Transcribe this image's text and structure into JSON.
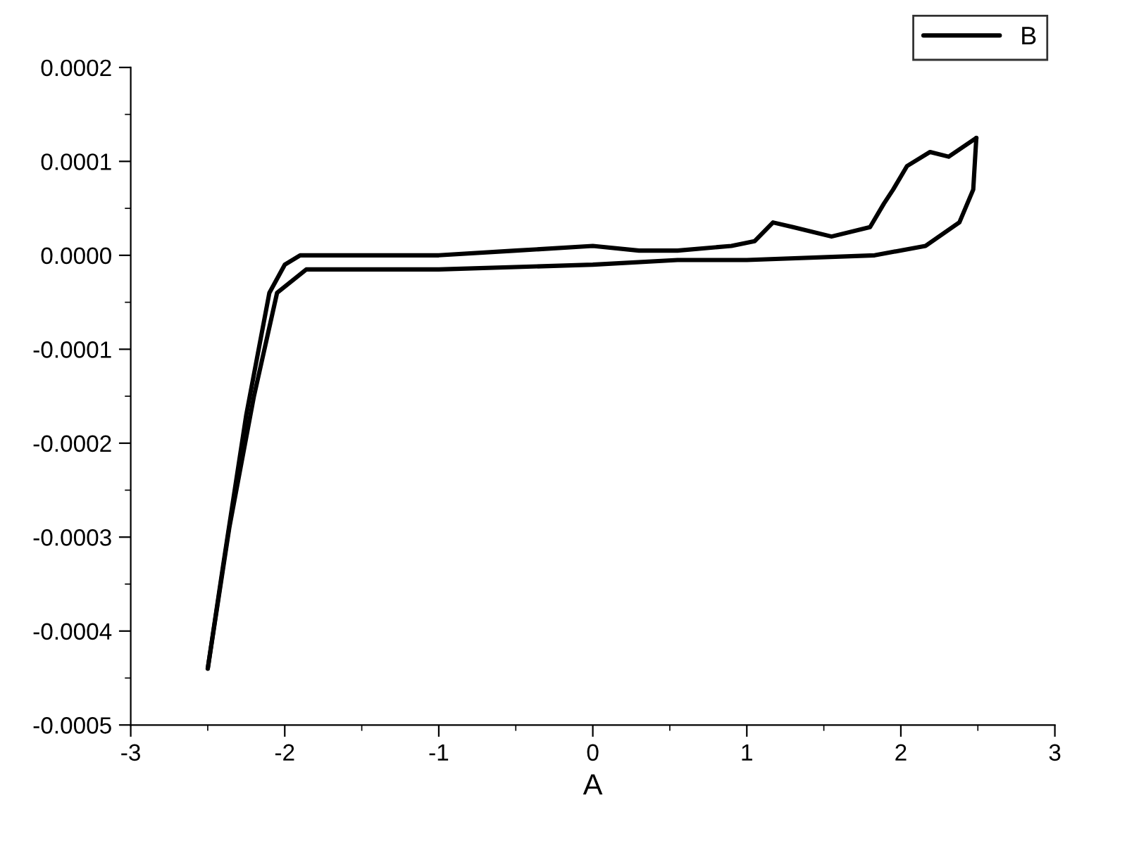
{
  "chart_data": {
    "type": "line",
    "xlabel": "A",
    "legend": "top right",
    "marker": "none",
    "line_style": "solid",
    "grid": false,
    "xlim": [
      -3,
      3
    ],
    "xticks": [
      -3,
      -2,
      -1,
      0,
      1,
      2,
      3
    ],
    "ylim": [
      -0.0005,
      0.0002
    ],
    "yticks": [
      {
        "value": -0.0005,
        "label": "-0.0005"
      },
      {
        "value": -0.0004,
        "label": "-0.0004"
      },
      {
        "value": -0.0003,
        "label": "-0.0003"
      },
      {
        "value": -0.0002,
        "label": "-0.0002"
      },
      {
        "value": -0.0001,
        "label": "-0.0001"
      },
      {
        "value": 0,
        "label": "0.0000"
      },
      {
        "value": 0.0001,
        "label": "0.0001"
      },
      {
        "value": 0.0002,
        "label": "0.0002"
      }
    ],
    "series": [
      {
        "name": "B",
        "color": "#000000",
        "x": [
          -2.5,
          -2.4,
          -2.25,
          -2.1,
          -2.0,
          -1.9,
          -1.5,
          -1.0,
          -0.5,
          0.0,
          0.3,
          0.55,
          0.9,
          1.05,
          1.17,
          1.3,
          1.55,
          1.8,
          1.89,
          1.95,
          2.04,
          2.19,
          2.31,
          2.49
        ],
        "values": [
          -0.00044,
          -0.00033,
          -0.00017,
          -4e-05,
          -1e-05,
          0.0,
          0.0,
          0.0,
          5e-06,
          1e-05,
          5e-06,
          5e-06,
          1e-05,
          1.5e-05,
          3.5e-05,
          3e-05,
          2e-05,
          3e-05,
          5.5e-05,
          7e-05,
          9.5e-05,
          0.00011,
          0.000105,
          0.000125
        ]
      },
      {
        "color": "#000000",
        "x": [
          2.49,
          2.47,
          2.38,
          2.16,
          1.83,
          1.0,
          0.55,
          0.0,
          -1.0,
          -1.7,
          -1.86,
          -2.05,
          -2.2,
          -2.36,
          -2.5
        ],
        "values": [
          0.000125,
          7e-05,
          3.5e-05,
          1e-05,
          0.0,
          -5e-06,
          -5e-06,
          -1e-05,
          -1.5e-05,
          -1.5e-05,
          -1.5e-05,
          -4e-05,
          -0.00015,
          -0.00029,
          -0.00044
        ]
      }
    ]
  }
}
